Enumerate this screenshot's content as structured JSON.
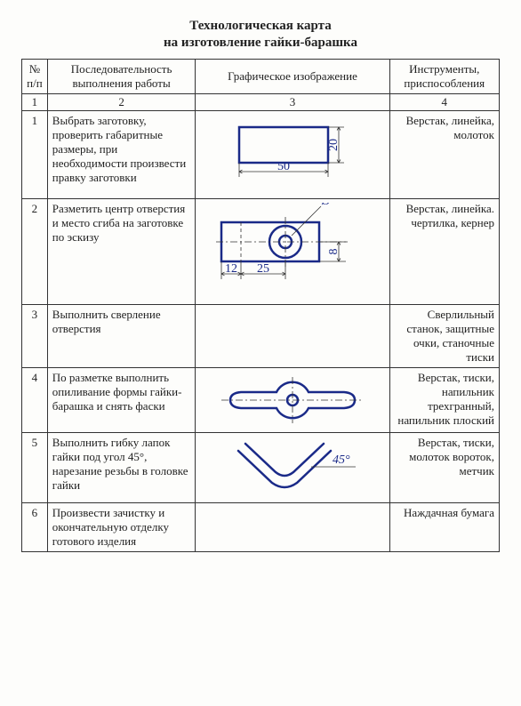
{
  "title_line1": "Технологическая карта",
  "title_line2": "на изготовление гайки-барашка",
  "headers": {
    "col1": "№ п/п",
    "col2": "Последовательность выполнения работы",
    "col3": "Графическое изображение",
    "col4": "Инструменты, приспособления"
  },
  "numrow": {
    "c1": "1",
    "c2": "2",
    "c3": "3",
    "c4": "4"
  },
  "rows": [
    {
      "n": "1",
      "work": "Выбрать заготовку, проверить габаритные размеры, при необходимости произвести правку заготовки",
      "tools": "Верстак, линейка, молоток",
      "img": {
        "type": "rect",
        "w": 50,
        "h": 20,
        "dim_w": "50",
        "dim_h": "20",
        "stroke": "#1a2a88",
        "stroke_w": 2.5,
        "thin": "#333",
        "thin_w": 0.8,
        "font": 14
      }
    },
    {
      "n": "2",
      "work": "Разметить центр отверстия и место сгиба на заготовке по эскизу",
      "tools": "Верстак, линейка. чертилка, кернер",
      "img": {
        "type": "layout",
        "dim_12": "12",
        "dim_25": "25",
        "dim_8": "8",
        "diam": "Ø",
        "stroke": "#1a2a88",
        "stroke_w": 2.5,
        "thin": "#333",
        "thin_w": 0.8,
        "font": 14
      }
    },
    {
      "n": "3",
      "work": "Выполнить сверление отверстия",
      "tools": "Сверлильный станок, защитные очки, станочные тиски",
      "img": {
        "type": "none"
      }
    },
    {
      "n": "4",
      "work": "По разметке выполнить опиливание формы гайки-барашка и снять фаски",
      "tools": "Верстак, тиски, напильник трехгранный, напильник плоский",
      "img": {
        "type": "wingnut",
        "stroke": "#1a2a88",
        "stroke_w": 2.5,
        "thin": "#333",
        "thin_w": 0.8
      }
    },
    {
      "n": "5",
      "work": "Выполнить гибку лапок гайки под угол 45°, нарезание резьбы в головке гайки",
      "tools": "Верстак, тиски, молоток вороток, метчик",
      "img": {
        "type": "bent",
        "angle": "45°",
        "stroke": "#1a2a88",
        "stroke_w": 2.5,
        "thin": "#333",
        "thin_w": 0.8,
        "font": 14
      }
    },
    {
      "n": "6",
      "work": "Произвести зачистку и окончательную отделку готового изделия",
      "tools": "Наждачная бумага",
      "img": {
        "type": "none"
      }
    }
  ]
}
